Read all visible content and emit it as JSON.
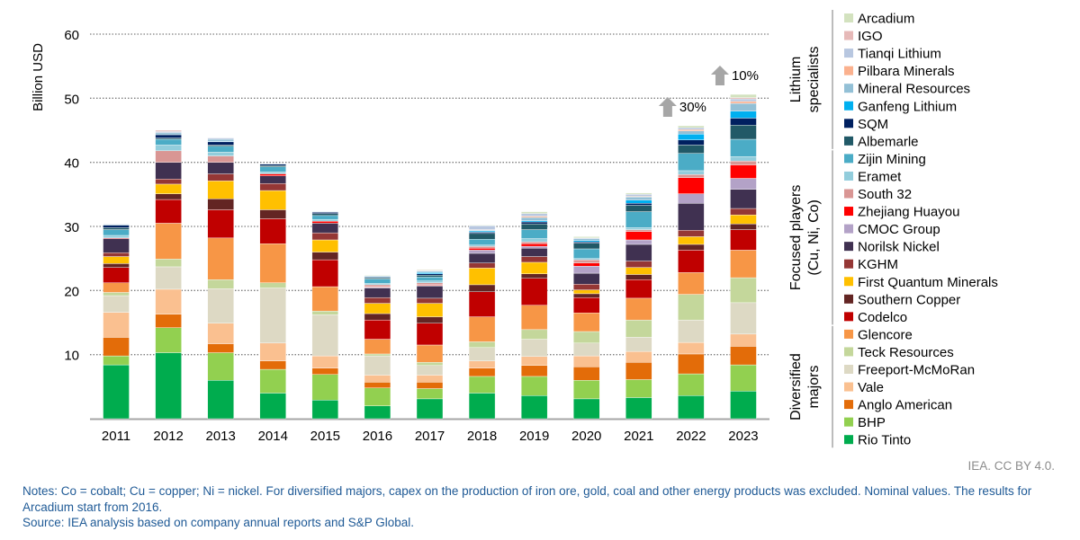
{
  "chart_data": {
    "type": "bar",
    "stacked": true,
    "ylabel": "Billion USD",
    "ylim": [
      0,
      60
    ],
    "yticks": [
      10,
      20,
      30,
      40,
      50,
      60
    ],
    "grid": "horizontal-dotted",
    "legend_placement": "right",
    "categories": [
      "2011",
      "2012",
      "2013",
      "2014",
      "2015",
      "2016",
      "2017",
      "2018",
      "2019",
      "2020",
      "2021",
      "2022",
      "2023"
    ],
    "series": [
      {
        "name": "Rio Tinto",
        "group": "Diversified majors",
        "color": "#00AC4E",
        "values": [
          8.4,
          10.3,
          6.0,
          4.0,
          2.9,
          2.0,
          3.1,
          4.0,
          3.6,
          3.1,
          3.3,
          3.6,
          4.3
        ]
      },
      {
        "name": "BHP",
        "group": "Diversified majors",
        "color": "#92D050",
        "values": [
          1.4,
          3.9,
          4.3,
          3.7,
          4.0,
          2.8,
          1.6,
          2.6,
          3.0,
          2.9,
          2.8,
          3.4,
          4.1
        ]
      },
      {
        "name": "Anglo American",
        "group": "Diversified majors",
        "color": "#E36C09",
        "values": [
          2.9,
          2.1,
          1.4,
          1.3,
          1.0,
          0.9,
          1.0,
          1.3,
          1.7,
          2.1,
          2.7,
          3.1,
          2.9
        ]
      },
      {
        "name": "Vale",
        "group": "Diversified majors",
        "color": "#FAC090",
        "values": [
          3.9,
          3.9,
          3.2,
          2.8,
          1.9,
          1.1,
          1.1,
          1.1,
          1.4,
          1.7,
          1.7,
          1.8,
          1.9
        ]
      },
      {
        "name": "Freeport-McMoRan",
        "group": "Diversified majors",
        "color": "#DDD9C4",
        "values": [
          2.6,
          3.5,
          5.4,
          8.6,
          6.4,
          3.0,
          1.5,
          2.1,
          2.7,
          2.0,
          2.2,
          3.5,
          4.9
        ]
      },
      {
        "name": "Teck Resources",
        "group": "Diversified majors",
        "color": "#C4D79B",
        "values": [
          0.5,
          1.2,
          1.4,
          0.8,
          0.6,
          0.3,
          0.5,
          0.9,
          1.5,
          1.8,
          2.7,
          4.0,
          3.9
        ]
      },
      {
        "name": "Glencore",
        "group": "Diversified majors",
        "color": "#F79646",
        "values": [
          1.5,
          5.6,
          6.5,
          6.1,
          3.8,
          2.3,
          2.7,
          3.9,
          3.8,
          2.9,
          3.4,
          3.4,
          4.3
        ]
      },
      {
        "name": "Codelco",
        "group": "Focused players (Cu, Ni, Co)",
        "color": "#C00000",
        "values": [
          2.4,
          3.7,
          4.4,
          3.9,
          4.2,
          3.0,
          3.4,
          3.9,
          4.2,
          2.4,
          2.9,
          3.5,
          3.2
        ]
      },
      {
        "name": "Southern Copper",
        "group": "Focused players (Cu, Ni, Co)",
        "color": "#632523",
        "values": [
          0.6,
          0.9,
          1.7,
          1.4,
          1.2,
          1.0,
          1.0,
          1.1,
          0.7,
          0.6,
          0.8,
          0.9,
          0.9
        ]
      },
      {
        "name": "First Quantum Minerals",
        "group": "Focused players (Cu, Ni, Co)",
        "color": "#FFC000",
        "values": [
          1.1,
          1.5,
          2.8,
          3.0,
          1.9,
          1.6,
          2.1,
          2.6,
          1.8,
          0.6,
          1.1,
          1.2,
          1.4
        ]
      },
      {
        "name": "KGHM",
        "group": "Focused players (Cu, Ni, Co)",
        "color": "#953735",
        "values": [
          0.6,
          0.8,
          1.1,
          1.1,
          1.1,
          0.9,
          0.8,
          0.8,
          0.9,
          0.9,
          1.0,
          1.0,
          1.0
        ]
      },
      {
        "name": "Norilsk Nickel",
        "group": "Focused players (Cu, Ni, Co)",
        "color": "#403151",
        "values": [
          2.2,
          2.6,
          1.8,
          1.2,
          1.5,
          1.5,
          1.9,
          1.5,
          1.3,
          1.7,
          2.6,
          4.2,
          3.0
        ]
      },
      {
        "name": "CMOC Group",
        "group": "Focused players (Cu, Ni, Co)",
        "color": "#B3A2C7",
        "values": [
          0,
          0,
          0,
          0,
          0,
          0.1,
          0.1,
          0.5,
          0.3,
          1.1,
          0.7,
          1.5,
          1.7
        ]
      },
      {
        "name": "Zhejiang Huayou",
        "group": "Focused players (Cu, Ni, Co)",
        "color": "#FF0000",
        "values": [
          0.1,
          0,
          0,
          0.3,
          0.3,
          0.1,
          0.1,
          0.3,
          0.4,
          0.5,
          1.3,
          2.5,
          2.1
        ]
      },
      {
        "name": "South 32",
        "group": "Focused players (Cu, Ni, Co)",
        "color": "#D99694",
        "values": [
          0,
          1.8,
          1.0,
          0,
          0,
          0.3,
          0.3,
          0.3,
          0.3,
          0.5,
          0.3,
          0.5,
          0.6
        ]
      },
      {
        "name": "Eramet",
        "group": "Focused players (Cu, Ni, Co)",
        "color": "#92CDDC",
        "values": [
          0.4,
          0.9,
          0.6,
          0.3,
          0.3,
          0.2,
          0.3,
          0.2,
          0.5,
          0.2,
          0.3,
          0.6,
          0.7
        ]
      },
      {
        "name": "Zijin Mining",
        "group": "Focused players (Cu, Ni, Co)",
        "color": "#4BACC6",
        "values": [
          0.9,
          0.9,
          0.9,
          0.8,
          0.6,
          0.7,
          0.6,
          0.9,
          1.4,
          1.5,
          2.5,
          2.7,
          2.7
        ]
      },
      {
        "name": "Albemarle",
        "group": "Lithium specialists",
        "color": "#215967",
        "values": [
          0.3,
          0.2,
          0.2,
          0.2,
          0.3,
          0.2,
          0.3,
          0.9,
          0.9,
          0.9,
          1.0,
          1.3,
          2.2
        ]
      },
      {
        "name": "SQM",
        "group": "Lithium specialists",
        "color": "#002060",
        "values": [
          0.4,
          0.5,
          0.5,
          0.2,
          0.2,
          0.1,
          0.2,
          0.2,
          0.3,
          0.2,
          0.3,
          0.8,
          1.1
        ]
      },
      {
        "name": "Ganfeng Lithium",
        "group": "Lithium specialists",
        "color": "#00B0F0",
        "values": [
          0,
          0,
          0.1,
          0,
          0,
          0.1,
          0.2,
          0.2,
          0.2,
          0.2,
          0.5,
          0.9,
          1.1
        ]
      },
      {
        "name": "Mineral Resources",
        "group": "Lithium specialists",
        "color": "#93C0D6",
        "values": [
          0.1,
          0.3,
          0.3,
          0.1,
          0.1,
          0.1,
          0.2,
          0.1,
          0.5,
          0.3,
          0.5,
          0.5,
          1.2
        ]
      },
      {
        "name": "Pilbara Minerals",
        "group": "Lithium specialists",
        "color": "#FBB18E",
        "values": [
          0,
          0,
          0,
          0,
          0,
          0,
          0,
          0.1,
          0.2,
          0,
          0.1,
          0.2,
          0.3
        ]
      },
      {
        "name": "Tianqi Lithium",
        "group": "Lithium specialists",
        "color": "#B8C7E0",
        "values": [
          0.1,
          0.2,
          0.2,
          0,
          0,
          0,
          0.1,
          0.6,
          0.4,
          0.1,
          0.3,
          0.3,
          0.4
        ]
      },
      {
        "name": "IGO",
        "group": "Lithium specialists",
        "color": "#E6B9B8",
        "values": [
          0,
          0.2,
          0,
          0,
          0,
          0,
          0.1,
          0,
          0,
          0,
          0,
          0,
          0.2
        ]
      },
      {
        "name": "Arcadium",
        "group": "Lithium specialists",
        "color": "#D3E2BF",
        "values": [
          0,
          0,
          0,
          0,
          0,
          0.1,
          0.1,
          0.1,
          0.3,
          0.2,
          0.2,
          0.3,
          0.5
        ]
      }
    ],
    "legend_groups": [
      {
        "label_lines": [
          "Lithium",
          "specialists"
        ]
      },
      {
        "label_lines": [
          "Focused players",
          "(Cu, Ni, Co)"
        ]
      },
      {
        "label_lines": [
          "Diversified",
          "majors"
        ]
      }
    ],
    "annotations": [
      {
        "category": "2022",
        "text": "30%",
        "icon": "arrow-up-icon",
        "color": "#A6A6A6"
      },
      {
        "category": "2023",
        "text": "10%",
        "icon": "arrow-up-icon",
        "color": "#A6A6A6"
      }
    ]
  },
  "credit": "IEA. CC BY 4.0.",
  "notes": "Notes: Co = cobalt; Cu = copper; Ni = nickel. For diversified majors, capex on the production of iron ore, gold, coal and other energy products was excluded. Nominal values. The results for Arcadium start from 2016.",
  "source": "Source: IEA analysis based on company annual reports and S&P Global."
}
